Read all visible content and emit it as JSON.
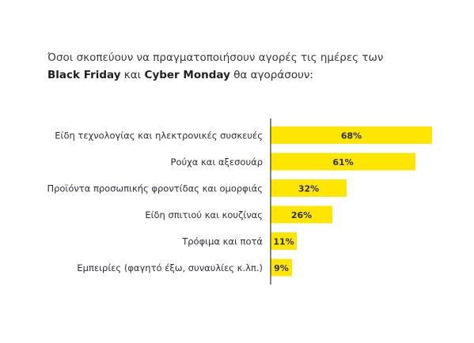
{
  "title": {
    "line1": "Όσοι σκοπεύουν να πραγματοποιήσουν αγορές τις ημέρες των",
    "bf": "Black Friday",
    "and": " και ",
    "cm": "Cyber Monday",
    "rest": " θα αγοράσουν:"
  },
  "colors": {
    "bar": "#ffe600",
    "axis": "#333333",
    "text": "#2e2e38"
  },
  "chart_data": {
    "type": "bar",
    "orientation": "horizontal",
    "categories": [
      "Είδη τεχνολογίας και ηλεκτρονικές συσκευές",
      "Ρούχα και αξεσουάρ",
      "Προϊόντα προσωπικής φροντίδας και ομορφιάς",
      "Είδη σπιτιού και κουζίνας",
      "Τρόφιμα και ποτά",
      "Εμπειρίες (φαγητό έξω, συναυλίες κ.λπ.)"
    ],
    "values": [
      68,
      61,
      32,
      26,
      11,
      9
    ],
    "data_labels": [
      "68%",
      "61%",
      "32%",
      "26%",
      "11%",
      "9%"
    ],
    "xlim": [
      0,
      100
    ],
    "grid": false,
    "legend": "none"
  }
}
